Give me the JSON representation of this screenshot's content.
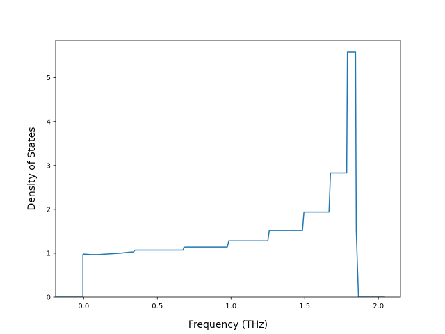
{
  "chart_data": {
    "type": "line",
    "title": "",
    "xlabel": "Frequency (THz)",
    "ylabel": "Density of States",
    "xlim": [
      -0.19,
      2.15
    ],
    "ylim": [
      0,
      5.85
    ],
    "xticks": [
      0.0,
      0.5,
      1.0,
      1.5,
      2.0
    ],
    "xtick_labels": [
      "0.0",
      "0.5",
      "1.0",
      "1.5",
      "2.0"
    ],
    "yticks": [
      0,
      1,
      2,
      3,
      4,
      5
    ],
    "ytick_labels": [
      "0",
      "1",
      "2",
      "3",
      "4",
      "5"
    ],
    "grid": false,
    "legend": "none",
    "series": [
      {
        "color": "#1f77b4",
        "x": [
          -0.19,
          -0.005,
          -0.005,
          0.0,
          0.0,
          0.05,
          0.1,
          0.15,
          0.2,
          0.25,
          0.3,
          0.34,
          0.345,
          0.35,
          0.45,
          0.55,
          0.65,
          0.675,
          0.68,
          0.69,
          0.8,
          0.9,
          0.975,
          0.985,
          1.0,
          1.1,
          1.2,
          1.25,
          1.26,
          1.27,
          1.35,
          1.45,
          1.485,
          1.495,
          1.5,
          1.6,
          1.665,
          1.675,
          1.68,
          1.75,
          1.785,
          1.79,
          1.8,
          1.84,
          1.845,
          1.85,
          1.865,
          1.87,
          2.04
        ],
        "y": [
          0,
          0,
          0.97,
          0.98,
          0.98,
          0.97,
          0.97,
          0.98,
          0.99,
          1.0,
          1.02,
          1.03,
          1.06,
          1.07,
          1.07,
          1.07,
          1.07,
          1.07,
          1.13,
          1.14,
          1.14,
          1.14,
          1.14,
          1.28,
          1.28,
          1.28,
          1.28,
          1.28,
          1.52,
          1.52,
          1.52,
          1.52,
          1.52,
          1.94,
          1.94,
          1.94,
          1.94,
          2.83,
          2.83,
          2.83,
          2.83,
          5.58,
          5.58,
          5.58,
          5.58,
          1.5,
          0,
          0,
          0
        ]
      }
    ]
  }
}
